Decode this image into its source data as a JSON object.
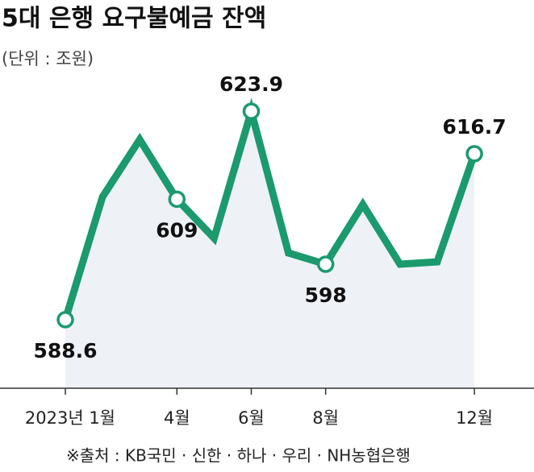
{
  "chart_data": {
    "type": "line",
    "title": "5대 은행 요구불예금 잔액",
    "subtitle": "(단위 : 조원)",
    "source": "※출처 : KB국민 · 신한 · 하나 · 우리 · NH농협은행",
    "categories": [
      "2023년 1월",
      null,
      null,
      "4월",
      null,
      "6월",
      null,
      "8월",
      null,
      null,
      null,
      "12월"
    ],
    "values": [
      588.6,
      609.4,
      619.1,
      609,
      602.4,
      623.9,
      599.9,
      598,
      608.1,
      598,
      598.4,
      616.7
    ],
    "value_labels": [
      "588.6",
      null,
      null,
      "609",
      null,
      "623.9",
      null,
      "598",
      null,
      null,
      null,
      "616.7"
    ],
    "color": "#1b9a6d",
    "area_color": "#eef1f6",
    "ylim": [
      577,
      640
    ]
  }
}
